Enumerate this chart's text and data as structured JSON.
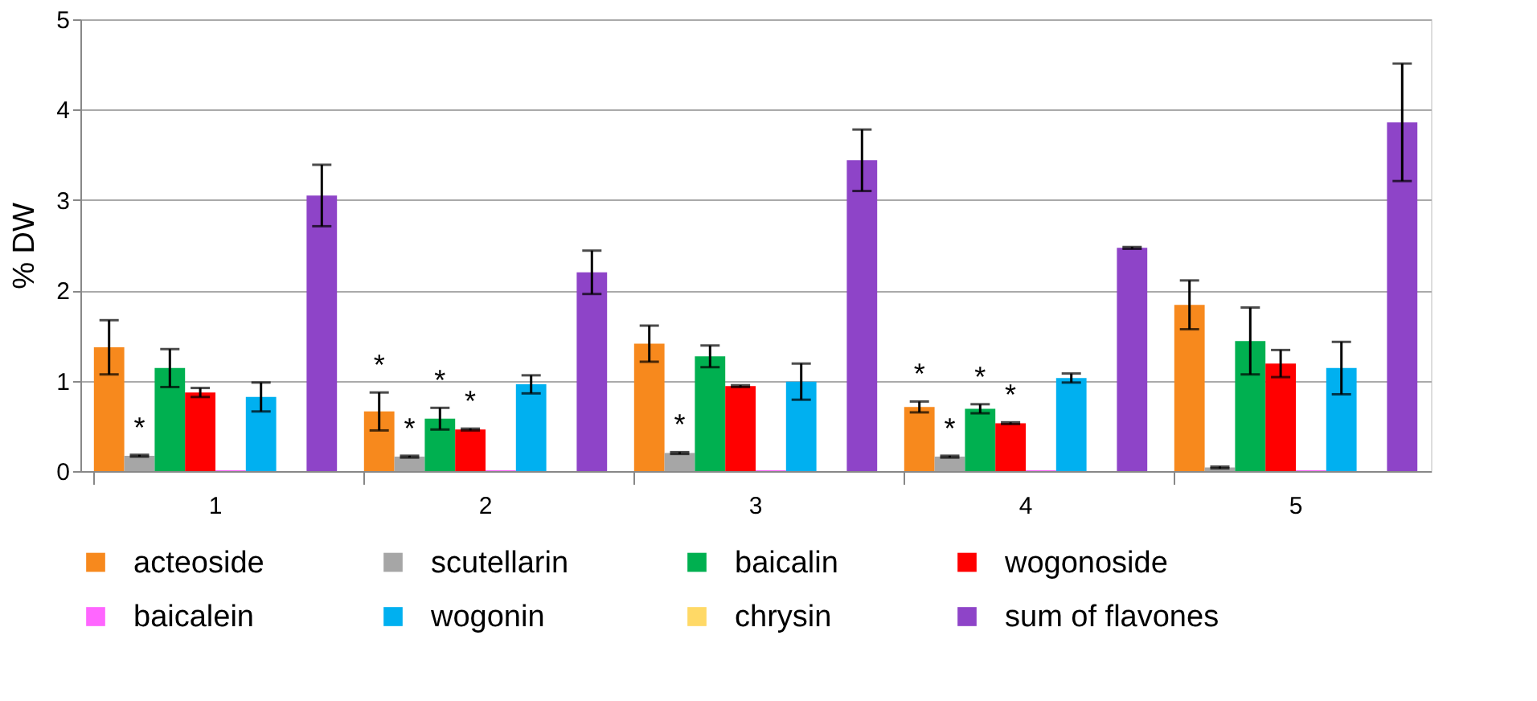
{
  "chart_data": {
    "type": "bar",
    "ylabel": "% DW",
    "categories": [
      "1",
      "2",
      "3",
      "4",
      "5"
    ],
    "series": [
      {
        "name": "acteoside",
        "color": "#f7891d",
        "values": [
          1.37,
          0.66,
          1.41,
          0.71,
          1.84
        ],
        "errors": [
          0.3,
          0.21,
          0.2,
          0.06,
          0.27
        ],
        "value_labels": [
          null,
          "*",
          null,
          "*",
          null
        ]
      },
      {
        "name": "scutellarin",
        "color": "#a6a6a6",
        "values": [
          0.17,
          0.16,
          0.2,
          0.16,
          0.04
        ],
        "errors": [
          0.01,
          0.01,
          0.01,
          0.01,
          0.01
        ],
        "value_labels": [
          "*",
          "*",
          "*",
          "*",
          null
        ]
      },
      {
        "name": "baicalin",
        "color": "#00b050",
        "values": [
          1.14,
          0.58,
          1.27,
          0.69,
          1.44
        ],
        "errors": [
          0.21,
          0.12,
          0.12,
          0.05,
          0.37
        ],
        "value_labels": [
          null,
          "*",
          null,
          "*",
          null
        ]
      },
      {
        "name": "wogonoside",
        "color": "#ff0000",
        "values": [
          0.87,
          0.46,
          0.94,
          0.53,
          1.19
        ],
        "errors": [
          0.05,
          0.01,
          0.01,
          0.01,
          0.15
        ],
        "value_labels": [
          null,
          "*",
          null,
          "*",
          null
        ]
      },
      {
        "name": "baicalein",
        "color": "#ff66ff",
        "values": [
          0.01,
          0.01,
          0.01,
          0.01,
          0.01
        ]
      },
      {
        "name": "wogonin",
        "color": "#00b0f0",
        "values": [
          0.82,
          0.96,
          0.99,
          1.03,
          1.14
        ],
        "errors": [
          0.16,
          0.1,
          0.2,
          0.05,
          0.29
        ]
      },
      {
        "name": "chrysin",
        "color": "#ffd966",
        "values": [
          0,
          0,
          0,
          0,
          0
        ]
      },
      {
        "name": "sum of flavones",
        "color": "#8e44c8",
        "values": [
          3.05,
          2.2,
          3.44,
          2.47,
          3.86
        ],
        "errors": [
          0.34,
          0.24,
          0.34,
          0.01,
          0.65
        ]
      }
    ],
    "ylim": [
      0,
      5
    ],
    "yticks": [
      0,
      1,
      2,
      3,
      4,
      5
    ],
    "grid": "y",
    "legend": "bottom"
  }
}
